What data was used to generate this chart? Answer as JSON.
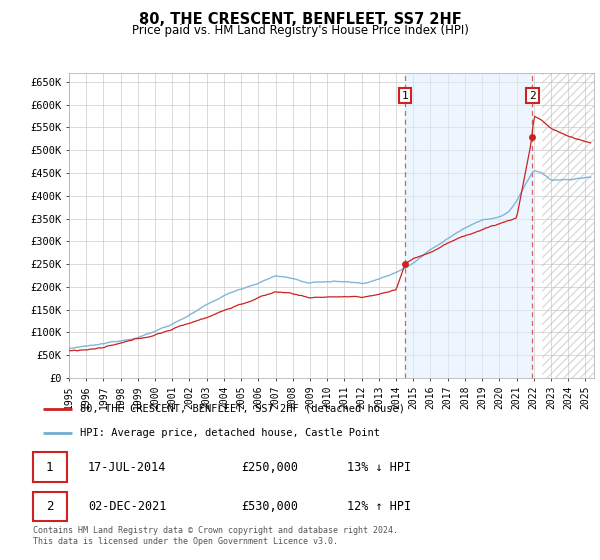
{
  "title": "80, THE CRESCENT, BENFLEET, SS7 2HF",
  "subtitle": "Price paid vs. HM Land Registry's House Price Index (HPI)",
  "xlim_start": 1995.0,
  "xlim_end": 2025.5,
  "ylim_bottom": 0,
  "ylim_top": 670000,
  "yticks": [
    0,
    50000,
    100000,
    150000,
    200000,
    250000,
    300000,
    350000,
    400000,
    450000,
    500000,
    550000,
    600000,
    650000
  ],
  "ytick_labels": [
    "£0",
    "£50K",
    "£100K",
    "£150K",
    "£200K",
    "£250K",
    "£300K",
    "£350K",
    "£400K",
    "£450K",
    "£500K",
    "£550K",
    "£600K",
    "£650K"
  ],
  "background_color": "#ffffff",
  "plot_bg_color": "#ffffff",
  "grid_color": "#cccccc",
  "hpi_color": "#74afd3",
  "price_color": "#cc2222",
  "sale1_x": 2014.54,
  "sale1_y": 250000,
  "sale2_x": 2021.92,
  "sale2_y": 530000,
  "legend_line1": "80, THE CRESCENT, BENFLEET, SS7 2HF (detached house)",
  "legend_line2": "HPI: Average price, detached house, Castle Point",
  "table_row1_date": "17-JUL-2014",
  "table_row1_price": "£250,000",
  "table_row1_hpi": "13% ↓ HPI",
  "table_row2_date": "02-DEC-2021",
  "table_row2_price": "£530,000",
  "table_row2_hpi": "12% ↑ HPI",
  "footnote": "Contains HM Land Registry data © Crown copyright and database right 2024.\nThis data is licensed under the Open Government Licence v3.0.",
  "shade_color": "#ddeeff"
}
